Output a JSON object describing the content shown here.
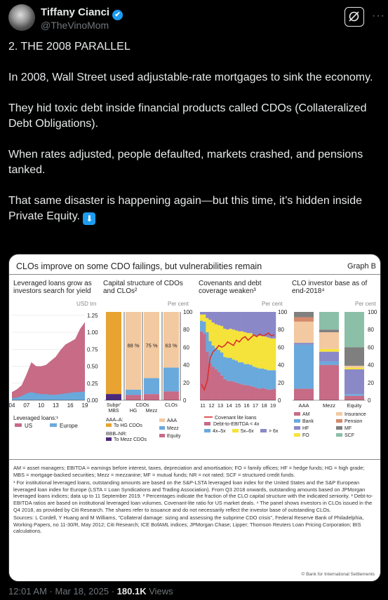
{
  "author": {
    "name": "Tiffany Cianci",
    "handle": "@TheVinoMom",
    "verified_icon": "✔"
  },
  "post": {
    "lines": [
      "2. THE 2008 PARALLEL",
      "In 2008, Wall Street used adjustable-rate mortgages to sink the economy.",
      "They hid toxic debt inside financial products called CDOs (Collateralized Debt Obligations).",
      "When rates adjusted, people defaulted, markets crashed, and pensions tanked.",
      "That same disaster is happening again—but this time, it’s hidden inside Private Equity."
    ],
    "emoji": "⬇"
  },
  "figure": {
    "title": "CLOs improve on some CDO failings, but vulnerabilities remain",
    "label": "Graph B",
    "panels": [
      {
        "title_lines": [
          "Leveraged loans grow as",
          "investors search for yield"
        ],
        "unit": "USD trn"
      },
      {
        "title_lines": [
          "Capital structure of CDOs",
          "and CLOs²"
        ],
        "unit": "Per cent"
      },
      {
        "title_lines": [
          "Covenants and debt",
          "coverage weaken³"
        ],
        "unit": "Per cent"
      },
      {
        "title_lines": [
          "CLO investor base as of",
          "end-2018⁴"
        ],
        "unit": "Per cent"
      }
    ],
    "notes": [
      "AM = asset managers; EBITDA = earnings before interest, taxes, depreciation and amortisation; FO = family offices; HF = hedge funds; HG = high grade; MBS = mortgage-backed securities; Mezz = mezzanine; MF = mutual funds; NR = not rated; SCF = structured credit funds.",
      "¹ For institutional leveraged loans, outstanding amounts are based on the S&P-LSTA leveraged loan index for the United States and the S&P European leveraged loan index for Europe (LSTA = Loan Syndications and Trading Association). From Q3 2018 onwards, outstanding amounts based on JPMorgan leveraged loans indices; data up to 11 September 2019.  ² Percentages indicate the fraction of the CLO capital structure with the indicated seniority.  ³ Debt-to-EBITDA ratios are based on institutional leveraged loan volumes. Covenant-lite ratio for US market deals.  ⁴ The panel shows investors in CLOs issued in the Q4 2018, as provided by Citi Research. The shares refer to issuance and do not necessarily reflect the investor base of outstanding CLOs.",
      "Sources: L Cordell, Y Huang and M Williams, \"Collateral damage: sizing and assessing the subprime CDO crisis\", Federal Reserve Bank of Philadelphia, Working Papers, no 11-30/R, May 2012; Citi Research; ICE BofAML indices; JPMorgan Chase; Lipper; Thomson Reuters Loan Pricing Corporation; BIS calculations."
    ],
    "copyright": "© Bank for International Settlements"
  },
  "chart_data": [
    {
      "type": "area",
      "title": "Leveraged loans grow as investors search for yield",
      "ylabel": "USD trn",
      "x": [
        "04",
        "05",
        "06",
        "07",
        "08",
        "09",
        "10",
        "11",
        "12",
        "13",
        "14",
        "15",
        "16",
        "17",
        "18",
        "19"
      ],
      "xticks": [
        "04",
        "07",
        "10",
        "13",
        "16",
        "19"
      ],
      "yticks": [
        "1.25",
        "1.00",
        "0.75",
        "0.50",
        "0.25",
        "0.00"
      ],
      "ylim": [
        0,
        1.3
      ],
      "series": [
        {
          "name": "US",
          "color": "#c76b86",
          "values": [
            0.12,
            0.16,
            0.22,
            0.38,
            0.56,
            0.5,
            0.5,
            0.52,
            0.58,
            0.64,
            0.74,
            0.82,
            0.86,
            0.9,
            1.05,
            1.15
          ]
        },
        {
          "name": "Europe",
          "color": "#6aa9dc",
          "values": [
            0.03,
            0.04,
            0.06,
            0.1,
            0.12,
            0.1,
            0.09,
            0.09,
            0.08,
            0.08,
            0.09,
            0.1,
            0.11,
            0.12,
            0.12,
            0.13
          ]
        }
      ],
      "legend_title": "Leveraged loans:¹"
    },
    {
      "type": "bar",
      "title": "Capital structure of CDOs and CLOs",
      "ylabel": "Per cent",
      "categories": [
        "Subpr MBS",
        "HG",
        "Mezz",
        "CLOs"
      ],
      "category_labels": [
        "Subpr'\nMBS",
        "HG",
        "Mezz",
        "CLOs"
      ],
      "group_label": "CDOs",
      "yticks": [
        "100",
        "80",
        "60",
        "40",
        "20",
        "0"
      ],
      "series": [
        {
          "name": "To HG CDOs",
          "color": "#e8a330",
          "values": [
            0,
            0,
            0,
            0
          ]
        },
        {
          "name": "AAA",
          "color": "#f2c9a0",
          "values": [
            0,
            88,
            75,
            63
          ]
        },
        {
          "name": "Mezz",
          "color": "#6aa9dc",
          "values": [
            0,
            6,
            18,
            27
          ]
        },
        {
          "name": "Equity",
          "color": "#c76b86",
          "values": [
            0,
            6,
            7,
            10
          ]
        }
      ],
      "subpr_mbs": {
        "AAA_to_HG": 93,
        "BBB_NR_to_Mezz": 7
      },
      "bar_labels": [
        "88 %",
        "75 %",
        "63 %"
      ],
      "legend_groups": [
        "AAA–A:",
        "BBB–NR:"
      ],
      "legend_items": [
        "To HG CDOs",
        "To Mezz CDOs",
        "AAA",
        "Mezz",
        "Equity"
      ]
    },
    {
      "type": "bar",
      "title": "Covenants and debt coverage weaken",
      "ylabel": "Per cent",
      "xticks": [
        "11",
        "12",
        "13",
        "14",
        "15",
        "16",
        "17",
        "18",
        "19"
      ],
      "yticks": [
        "100",
        "80",
        "60",
        "40",
        "20",
        "0"
      ],
      "series": [
        {
          "name": "Debt-to-EBITDA < 4x",
          "color": "#c76b86",
          "values": [
            78,
            75,
            55,
            42,
            38,
            35,
            32,
            28,
            24,
            22,
            22,
            21,
            20,
            19,
            18,
            17,
            17,
            16,
            15,
            14,
            13,
            14,
            13,
            12,
            12,
            13
          ]
        },
        {
          "name": "4x–5x",
          "color": "#6aa9dc",
          "values": [
            12,
            14,
            22,
            25,
            24,
            24,
            25,
            26,
            25,
            26,
            26,
            25,
            25,
            24,
            25,
            24,
            24,
            24,
            23,
            23,
            23,
            22,
            22,
            22,
            22,
            21
          ]
        },
        {
          "name": "5x–6x",
          "color": "#f5e33b",
          "values": [
            7,
            8,
            16,
            24,
            26,
            27,
            28,
            30,
            32,
            32,
            33,
            34,
            34,
            35,
            35,
            36,
            35,
            36,
            36,
            36,
            37,
            37,
            37,
            37,
            36,
            36
          ]
        },
        {
          "name": "> 6x",
          "color": "#8b88c8",
          "values": [
            3,
            3,
            7,
            9,
            12,
            14,
            15,
            16,
            19,
            20,
            19,
            20,
            21,
            22,
            22,
            23,
            24,
            24,
            26,
            27,
            27,
            27,
            28,
            29,
            30,
            30
          ]
        }
      ],
      "line": {
        "name": "Covenant lite loans",
        "color": "#d9302c",
        "values": [
          18,
          12,
          22,
          48,
          55,
          58,
          62,
          60,
          62,
          66,
          64,
          62,
          68,
          66,
          70,
          72,
          68,
          71,
          74,
          72,
          75,
          73,
          74,
          76,
          73,
          74
        ]
      }
    },
    {
      "type": "bar",
      "title": "CLO investor base as of end-2018",
      "ylabel": "Per cent",
      "categories": [
        "AAA",
        "Mezz",
        "Equity"
      ],
      "yticks": [
        "100",
        "80",
        "60",
        "40",
        "20",
        "0"
      ],
      "series": [
        {
          "name": "AM",
          "color": "#c76b86",
          "values": [
            13,
            40,
            5
          ]
        },
        {
          "name": "Bank",
          "color": "#6aa9dc",
          "values": [
            50,
            4,
            2
          ]
        },
        {
          "name": "HF",
          "color": "#8b88c8",
          "values": [
            2,
            11,
            28
          ]
        },
        {
          "name": "FO",
          "color": "#f5e33b",
          "values": [
            0,
            3,
            2
          ]
        },
        {
          "name": "Insurance",
          "color": "#f2c9a0",
          "values": [
            24,
            19,
            2
          ]
        },
        {
          "name": "Pension",
          "color": "#d48a6a",
          "values": [
            5,
            0,
            0
          ]
        },
        {
          "name": "MF",
          "color": "#7f7f7f",
          "values": [
            6,
            3,
            21
          ]
        },
        {
          "name": "SCF",
          "color": "#8cbfa8",
          "values": [
            0,
            20,
            40
          ]
        }
      ]
    }
  ],
  "timestamp": {
    "time": "12:01 AM",
    "date": "Mar 18, 2025",
    "views_count": "180.1K",
    "views_label": "Views"
  }
}
